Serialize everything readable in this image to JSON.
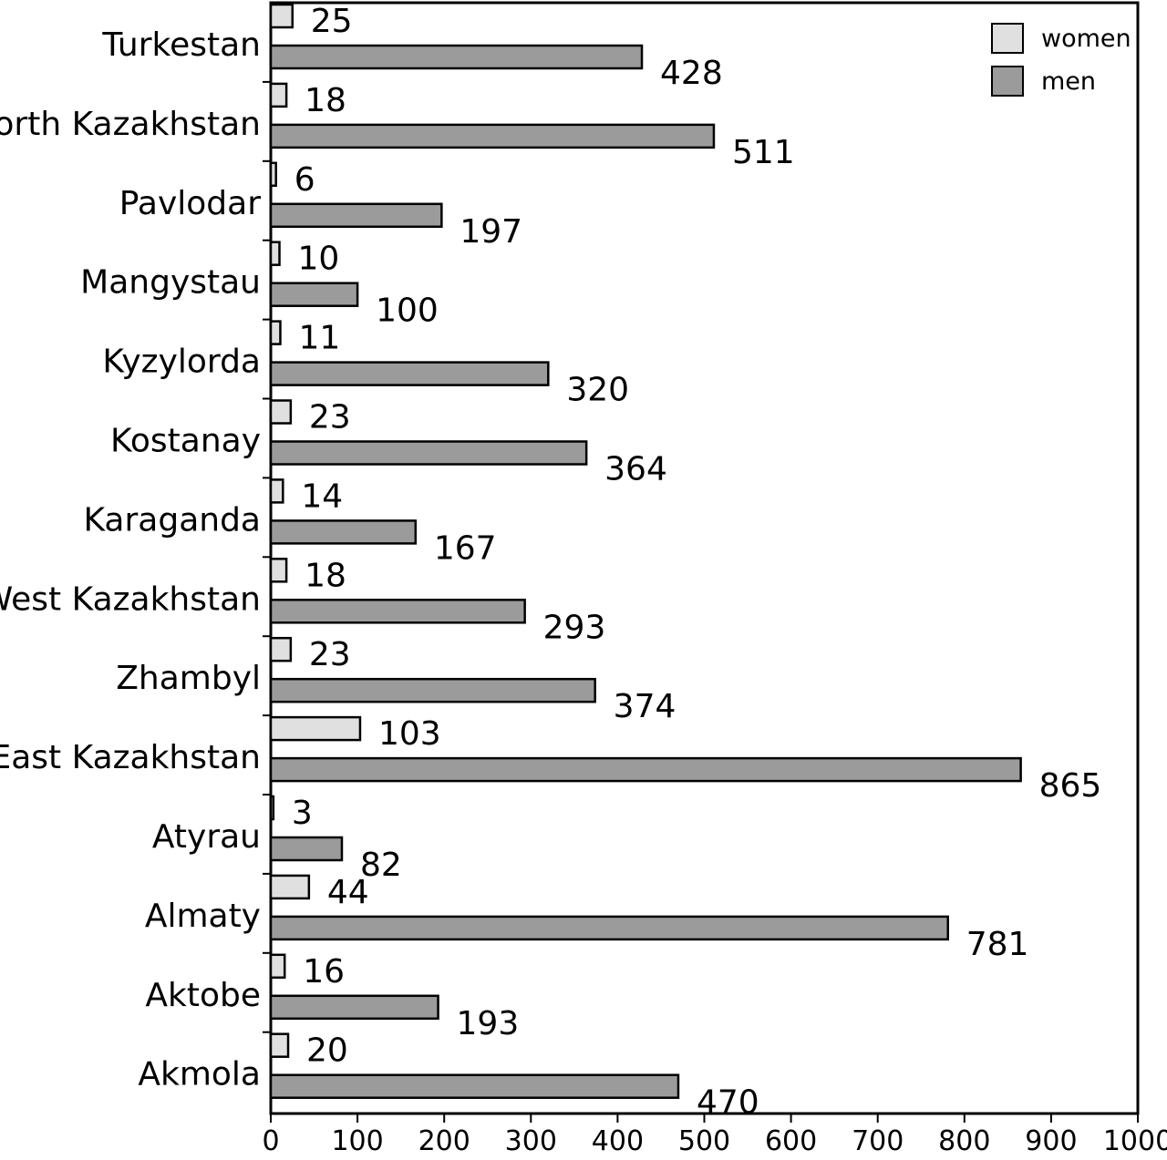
{
  "chart_data": {
    "type": "bar",
    "orientation": "horizontal",
    "categories": [
      "Turkestan",
      "North Kazakhstan",
      "Pavlodar",
      "Mangystau",
      "Kyzylorda",
      "Kostanay",
      "Karaganda",
      "West Kazakhstan",
      "Zhambyl",
      "East Kazakhstan",
      "Atyrau",
      "Almaty",
      "Aktobe",
      "Akmola"
    ],
    "series": [
      {
        "name": "women",
        "color": "#e0e0e0",
        "values": [
          25,
          18,
          6,
          10,
          11,
          23,
          14,
          18,
          23,
          103,
          3,
          44,
          16,
          20
        ]
      },
      {
        "name": "men",
        "color": "#9b9b9b",
        "values": [
          428,
          511,
          197,
          100,
          320,
          364,
          167,
          293,
          374,
          865,
          82,
          781,
          193,
          470
        ]
      }
    ],
    "xlim": [
      0,
      1000
    ],
    "xticks": [
      0,
      100,
      200,
      300,
      400,
      500,
      600,
      700,
      800,
      900,
      1000
    ],
    "title": "",
    "xlabel": "",
    "ylabel": "",
    "grid": false,
    "legend_position": "top-right",
    "data_labels": true
  }
}
